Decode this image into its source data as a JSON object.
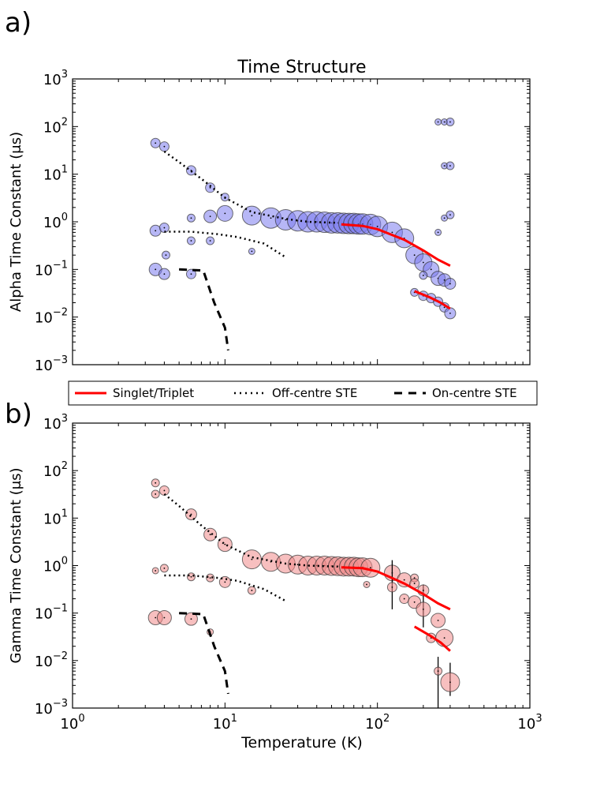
{
  "figure": {
    "panel_a_label": "a)",
    "panel_b_label": "b)",
    "title": "Time Structure",
    "xlabel": "Temperature (K)",
    "legend": [
      {
        "label": "Singlet/Triplet",
        "style": "solid",
        "color": "#ff0000"
      },
      {
        "label": "Off-centre STE",
        "style": "dotted",
        "color": "#000000"
      },
      {
        "label": "On-centre STE",
        "style": "dashed",
        "color": "#000000"
      }
    ]
  },
  "chart_data": [
    {
      "type": "scatter",
      "panel": "a",
      "title": "Time Structure",
      "ylabel": "Alpha Time Constant (μs)",
      "xlabel": "",
      "xscale": "log",
      "yscale": "log",
      "xlim": [
        1,
        1000
      ],
      "ylim": [
        0.001,
        1000
      ],
      "xticks": [
        1,
        10,
        100,
        1000
      ],
      "yticks": [
        0.001,
        0.01,
        0.1,
        1,
        10,
        100,
        1000
      ],
      "marker_color": "#7b7bee",
      "points": [
        {
          "x": 3.5,
          "y": 45,
          "s": 6
        },
        {
          "x": 4.0,
          "y": 38,
          "s": 6
        },
        {
          "x": 3.5,
          "y": 0.65,
          "s": 7
        },
        {
          "x": 4.0,
          "y": 0.75,
          "s": 6
        },
        {
          "x": 3.5,
          "y": 0.1,
          "s": 8
        },
        {
          "x": 4.0,
          "y": 0.08,
          "s": 7
        },
        {
          "x": 4.1,
          "y": 0.2,
          "s": 5
        },
        {
          "x": 6.0,
          "y": 12,
          "s": 6
        },
        {
          "x": 6.0,
          "y": 1.2,
          "s": 5
        },
        {
          "x": 6.0,
          "y": 0.4,
          "s": 5
        },
        {
          "x": 6.0,
          "y": 0.08,
          "s": 6
        },
        {
          "x": 8.0,
          "y": 5.2,
          "s": 6
        },
        {
          "x": 8.0,
          "y": 1.3,
          "s": 8
        },
        {
          "x": 8.0,
          "y": 0.4,
          "s": 5
        },
        {
          "x": 10.0,
          "y": 3.3,
          "s": 5
        },
        {
          "x": 10.0,
          "y": 1.5,
          "s": 10
        },
        {
          "x": 15.0,
          "y": 0.24,
          "s": 4
        },
        {
          "x": 15,
          "y": 1.35,
          "s": 12
        },
        {
          "x": 20,
          "y": 1.2,
          "s": 13
        },
        {
          "x": 25,
          "y": 1.1,
          "s": 13
        },
        {
          "x": 30,
          "y": 1.05,
          "s": 13
        },
        {
          "x": 35,
          "y": 1.0,
          "s": 13
        },
        {
          "x": 40,
          "y": 1.0,
          "s": 13
        },
        {
          "x": 45,
          "y": 0.98,
          "s": 13
        },
        {
          "x": 50,
          "y": 0.95,
          "s": 13
        },
        {
          "x": 55,
          "y": 0.95,
          "s": 13
        },
        {
          "x": 60,
          "y": 0.93,
          "s": 13
        },
        {
          "x": 65,
          "y": 0.92,
          "s": 13
        },
        {
          "x": 70,
          "y": 0.92,
          "s": 13
        },
        {
          "x": 75,
          "y": 0.9,
          "s": 13
        },
        {
          "x": 80,
          "y": 0.9,
          "s": 13
        },
        {
          "x": 90,
          "y": 0.88,
          "s": 13
        },
        {
          "x": 100,
          "y": 0.8,
          "s": 13
        },
        {
          "x": 125,
          "y": 0.6,
          "s": 13
        },
        {
          "x": 150,
          "y": 0.45,
          "s": 12
        },
        {
          "x": 175,
          "y": 0.2,
          "s": 11
        },
        {
          "x": 200,
          "y": 0.14,
          "s": 11
        },
        {
          "x": 225,
          "y": 0.1,
          "s": 10
        },
        {
          "x": 250,
          "y": 0.065,
          "s": 9
        },
        {
          "x": 275,
          "y": 0.06,
          "s": 8
        },
        {
          "x": 300,
          "y": 0.05,
          "s": 7
        },
        {
          "x": 175,
          "y": 0.033,
          "s": 5
        },
        {
          "x": 200,
          "y": 0.028,
          "s": 6
        },
        {
          "x": 225,
          "y": 0.025,
          "s": 6
        },
        {
          "x": 250,
          "y": 0.021,
          "s": 6
        },
        {
          "x": 275,
          "y": 0.016,
          "s": 6
        },
        {
          "x": 300,
          "y": 0.012,
          "s": 7
        },
        {
          "x": 200,
          "y": 0.075,
          "s": 5
        },
        {
          "x": 250,
          "y": 0.6,
          "s": 4
        },
        {
          "x": 275,
          "y": 1.2,
          "s": 4
        },
        {
          "x": 300,
          "y": 1.4,
          "s": 5
        },
        {
          "x": 275,
          "y": 15,
          "s": 4
        },
        {
          "x": 300,
          "y": 15,
          "s": 5
        },
        {
          "x": 250,
          "y": 125,
          "s": 4
        },
        {
          "x": 275,
          "y": 125,
          "s": 4
        },
        {
          "x": 300,
          "y": 125,
          "s": 5
        }
      ],
      "lines": [
        {
          "name": "Singlet/Triplet",
          "style": "solid",
          "points": [
            [
              58,
              0.88
            ],
            [
              80,
              0.82
            ],
            [
              100,
              0.7
            ],
            [
              150,
              0.42
            ],
            [
              200,
              0.25
            ],
            [
              250,
              0.16
            ],
            [
              300,
              0.12
            ]
          ]
        },
        {
          "name": "Singlet/Triplet",
          "style": "solid",
          "points": [
            [
              175,
              0.035
            ],
            [
              220,
              0.026
            ],
            [
              260,
              0.02
            ],
            [
              300,
              0.015
            ]
          ]
        },
        {
          "name": "Off-centre STE",
          "style": "dotted",
          "points": [
            [
              4,
              30
            ],
            [
              5,
              18
            ],
            [
              7,
              8
            ],
            [
              10,
              3.2
            ],
            [
              15,
              1.6
            ],
            [
              25,
              1.15
            ],
            [
              35,
              1.0
            ],
            [
              55,
              0.95
            ]
          ]
        },
        {
          "name": "Off-centre STE",
          "style": "dotted",
          "points": [
            [
              4,
              0.62
            ],
            [
              6,
              0.62
            ],
            [
              9,
              0.55
            ],
            [
              12,
              0.48
            ],
            [
              18,
              0.35
            ],
            [
              25,
              0.18
            ]
          ]
        },
        {
          "name": "On-centre STE",
          "style": "dashed",
          "points": [
            [
              5,
              0.1
            ],
            [
              7.2,
              0.095
            ],
            [
              8.5,
              0.02
            ],
            [
              10,
              0.006
            ],
            [
              10.5,
              0.002
            ]
          ]
        }
      ]
    },
    {
      "type": "scatter",
      "panel": "b",
      "title": "",
      "ylabel": "Gamma Time Constant (μs)",
      "xlabel": "Temperature (K)",
      "xscale": "log",
      "yscale": "log",
      "xlim": [
        1,
        1000
      ],
      "ylim": [
        0.001,
        1000
      ],
      "xticks": [
        1,
        10,
        100,
        1000
      ],
      "yticks": [
        0.001,
        0.01,
        0.1,
        1,
        10,
        100,
        1000
      ],
      "marker_color": "#f08a8a",
      "points": [
        {
          "x": 3.5,
          "y": 55,
          "s": 5
        },
        {
          "x": 3.5,
          "y": 32,
          "s": 5
        },
        {
          "x": 4.0,
          "y": 38,
          "s": 6
        },
        {
          "x": 3.5,
          "y": 0.78,
          "s": 4
        },
        {
          "x": 4.0,
          "y": 0.88,
          "s": 5
        },
        {
          "x": 3.5,
          "y": 0.08,
          "s": 9
        },
        {
          "x": 4.0,
          "y": 0.08,
          "s": 9
        },
        {
          "x": 6.0,
          "y": 12,
          "s": 7
        },
        {
          "x": 6.0,
          "y": 0.58,
          "s": 5
        },
        {
          "x": 6.0,
          "y": 0.075,
          "s": 8
        },
        {
          "x": 8.0,
          "y": 4.5,
          "s": 8
        },
        {
          "x": 8.0,
          "y": 0.55,
          "s": 5
        },
        {
          "x": 8.0,
          "y": 0.04,
          "s": 4
        },
        {
          "x": 10.0,
          "y": 2.8,
          "s": 9
        },
        {
          "x": 10.0,
          "y": 0.45,
          "s": 7
        },
        {
          "x": 15.0,
          "y": 0.3,
          "s": 5
        },
        {
          "x": 15,
          "y": 1.35,
          "s": 12
        },
        {
          "x": 20,
          "y": 1.2,
          "s": 12
        },
        {
          "x": 25,
          "y": 1.1,
          "s": 12
        },
        {
          "x": 30,
          "y": 1.05,
          "s": 12
        },
        {
          "x": 35,
          "y": 1.0,
          "s": 12
        },
        {
          "x": 40,
          "y": 1.0,
          "s": 12
        },
        {
          "x": 45,
          "y": 1.0,
          "s": 12
        },
        {
          "x": 50,
          "y": 0.98,
          "s": 12
        },
        {
          "x": 55,
          "y": 0.97,
          "s": 12
        },
        {
          "x": 60,
          "y": 0.95,
          "s": 12
        },
        {
          "x": 65,
          "y": 0.95,
          "s": 12
        },
        {
          "x": 70,
          "y": 0.95,
          "s": 12
        },
        {
          "x": 75,
          "y": 0.92,
          "s": 12
        },
        {
          "x": 80,
          "y": 0.92,
          "s": 12
        },
        {
          "x": 90,
          "y": 0.9,
          "s": 12
        },
        {
          "x": 85,
          "y": 0.4,
          "s": 4
        },
        {
          "x": 125,
          "y": 0.7,
          "s": 10
        },
        {
          "x": 125,
          "y": 0.35,
          "s": 6,
          "err": [
            0.12,
            1.3
          ]
        },
        {
          "x": 150,
          "y": 0.5,
          "s": 9
        },
        {
          "x": 150,
          "y": 0.2,
          "s": 6
        },
        {
          "x": 175,
          "y": 0.55,
          "s": 5
        },
        {
          "x": 175,
          "y": 0.42,
          "s": 6
        },
        {
          "x": 175,
          "y": 0.17,
          "s": 8
        },
        {
          "x": 200,
          "y": 0.3,
          "s": 7,
          "err": [
            0.05,
            0.4
          ]
        },
        {
          "x": 200,
          "y": 0.12,
          "s": 9
        },
        {
          "x": 225,
          "y": 0.03,
          "s": 6
        },
        {
          "x": 250,
          "y": 0.07,
          "s": 9
        },
        {
          "x": 250,
          "y": 0.006,
          "s": 5,
          "err": [
            0.001,
            0.012
          ]
        },
        {
          "x": 275,
          "y": 0.03,
          "s": 11
        },
        {
          "x": 300,
          "y": 0.0035,
          "s": 12,
          "err": [
            0.0018,
            0.009
          ]
        }
      ],
      "lines": [
        {
          "name": "Singlet/Triplet",
          "style": "solid",
          "points": [
            [
              58,
              0.92
            ],
            [
              80,
              0.88
            ],
            [
              100,
              0.75
            ],
            [
              150,
              0.42
            ],
            [
              200,
              0.25
            ],
            [
              250,
              0.16
            ],
            [
              300,
              0.12
            ]
          ]
        },
        {
          "name": "Singlet/Triplet",
          "style": "solid",
          "points": [
            [
              175,
              0.052
            ],
            [
              220,
              0.034
            ],
            [
              260,
              0.024
            ],
            [
              300,
              0.016
            ]
          ]
        },
        {
          "name": "Off-centre STE",
          "style": "dotted",
          "points": [
            [
              4,
              32
            ],
            [
              5,
              18
            ],
            [
              7,
              7
            ],
            [
              10,
              2.8
            ],
            [
              15,
              1.5
            ],
            [
              25,
              1.1
            ],
            [
              35,
              1.0
            ],
            [
              55,
              0.95
            ]
          ]
        },
        {
          "name": "Off-centre STE",
          "style": "dotted",
          "points": [
            [
              4,
              0.62
            ],
            [
              6,
              0.62
            ],
            [
              9,
              0.55
            ],
            [
              12,
              0.48
            ],
            [
              18,
              0.32
            ],
            [
              25,
              0.18
            ]
          ]
        },
        {
          "name": "On-centre STE",
          "style": "dashed",
          "points": [
            [
              5,
              0.1
            ],
            [
              7.2,
              0.095
            ],
            [
              8.5,
              0.02
            ],
            [
              10,
              0.006
            ],
            [
              10.5,
              0.002
            ]
          ]
        }
      ]
    }
  ]
}
